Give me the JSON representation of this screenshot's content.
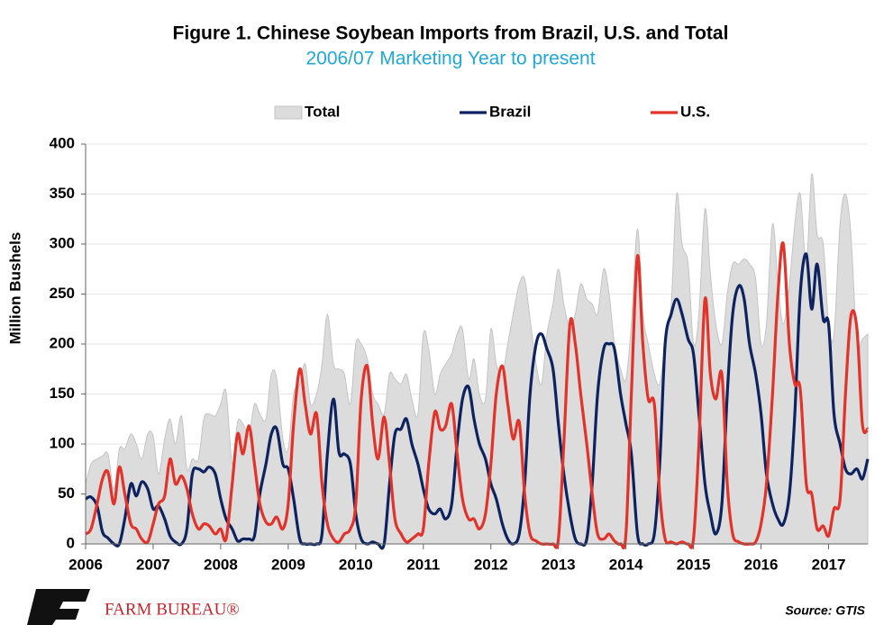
{
  "chart_data": {
    "type": "line",
    "title": "Figure 1. Chinese Soybean Imports from Brazil, U.S. and Total",
    "subtitle": "2006/07 Marketing Year to present",
    "y_label": "Million Bushels",
    "source": "Source: GTIS",
    "logo_text": "FARM BUREAU®",
    "xlim": [
      2006,
      2017.58
    ],
    "xticks": [
      2006,
      2007,
      2008,
      2009,
      2010,
      2011,
      2012,
      2013,
      2014,
      2015,
      2016,
      2017
    ],
    "ylim": [
      0,
      400
    ],
    "yticks": [
      0,
      50,
      100,
      150,
      200,
      250,
      300,
      350,
      400
    ],
    "grid": true,
    "legend": "top",
    "x": [
      2006,
      2006.08,
      2006.17,
      2006.25,
      2006.33,
      2006.42,
      2006.5,
      2006.58,
      2006.67,
      2006.75,
      2006.83,
      2006.92,
      2007,
      2007.08,
      2007.17,
      2007.25,
      2007.33,
      2007.42,
      2007.5,
      2007.58,
      2007.67,
      2007.75,
      2007.83,
      2007.92,
      2008,
      2008.08,
      2008.17,
      2008.25,
      2008.33,
      2008.42,
      2008.5,
      2008.58,
      2008.67,
      2008.75,
      2008.83,
      2008.92,
      2009,
      2009.08,
      2009.17,
      2009.25,
      2009.33,
      2009.42,
      2009.5,
      2009.58,
      2009.67,
      2009.75,
      2009.83,
      2009.92,
      2010,
      2010.08,
      2010.17,
      2010.25,
      2010.33,
      2010.42,
      2010.5,
      2010.58,
      2010.67,
      2010.75,
      2010.83,
      2010.92,
      2011,
      2011.08,
      2011.17,
      2011.25,
      2011.33,
      2011.42,
      2011.5,
      2011.58,
      2011.67,
      2011.75,
      2011.83,
      2011.92,
      2012,
      2012.08,
      2012.17,
      2012.25,
      2012.33,
      2012.42,
      2012.5,
      2012.58,
      2012.67,
      2012.75,
      2012.83,
      2012.92,
      2013,
      2013.08,
      2013.17,
      2013.25,
      2013.33,
      2013.42,
      2013.5,
      2013.58,
      2013.67,
      2013.75,
      2013.83,
      2013.92,
      2014,
      2014.08,
      2014.17,
      2014.25,
      2014.33,
      2014.42,
      2014.5,
      2014.58,
      2014.67,
      2014.75,
      2014.83,
      2014.92,
      2015,
      2015.08,
      2015.17,
      2015.25,
      2015.33,
      2015.42,
      2015.5,
      2015.58,
      2015.67,
      2015.75,
      2015.83,
      2015.92,
      2016,
      2016.08,
      2016.17,
      2016.25,
      2016.33,
      2016.42,
      2016.5,
      2016.58,
      2016.67,
      2016.75,
      2016.83,
      2016.92,
      2017,
      2017.08,
      2017.17,
      2017.25,
      2017.33,
      2017.42,
      2017.5,
      2017.58
    ],
    "series": [
      {
        "name": "Total",
        "color": "#dcdcdc",
        "style": "area",
        "values": [
          60,
          80,
          85,
          88,
          90,
          55,
          95,
          95,
          110,
          100,
          85,
          110,
          108,
          70,
          105,
          125,
          100,
          128,
          75,
          85,
          85,
          125,
          130,
          128,
          140,
          152,
          80,
          122,
          120,
          110,
          140,
          130,
          125,
          170,
          165,
          105,
          95,
          150,
          160,
          180,
          140,
          150,
          180,
          230,
          180,
          175,
          170,
          140,
          200,
          200,
          185,
          150,
          140,
          130,
          170,
          165,
          160,
          170,
          145,
          130,
          210,
          195,
          150,
          170,
          180,
          190,
          210,
          215,
          165,
          185,
          150,
          145,
          215,
          180,
          170,
          200,
          230,
          260,
          265,
          225,
          180,
          160,
          210,
          240,
          275,
          240,
          215,
          230,
          260,
          245,
          240,
          230,
          275,
          250,
          200,
          175,
          165,
          220,
          315,
          230,
          200,
          170,
          160,
          200,
          240,
          350,
          300,
          280,
          200,
          230,
          335,
          270,
          220,
          200,
          250,
          280,
          280,
          285,
          280,
          265,
          200,
          220,
          320,
          260,
          220,
          260,
          320,
          350,
          280,
          370,
          310,
          300,
          220,
          210,
          320,
          350,
          310,
          200,
          205,
          210
        ]
      },
      {
        "name": "Brazil",
        "color": "#0d2360",
        "style": "line",
        "values": [
          45,
          47,
          38,
          12,
          6,
          0,
          0,
          25,
          60,
          48,
          62,
          55,
          35,
          38,
          25,
          8,
          2,
          0,
          15,
          70,
          75,
          72,
          77,
          70,
          45,
          25,
          15,
          3,
          5,
          5,
          8,
          50,
          80,
          110,
          115,
          80,
          75,
          45,
          5,
          0,
          0,
          0,
          10,
          90,
          145,
          92,
          90,
          80,
          30,
          5,
          0,
          2,
          0,
          0,
          60,
          110,
          115,
          125,
          100,
          80,
          55,
          35,
          30,
          35,
          25,
          40,
          100,
          145,
          157,
          125,
          100,
          85,
          60,
          45,
          20,
          5,
          0,
          10,
          60,
          150,
          200,
          210,
          195,
          175,
          120,
          70,
          30,
          5,
          0,
          5,
          60,
          150,
          195,
          200,
          195,
          150,
          120,
          90,
          10,
          0,
          0,
          10,
          80,
          200,
          230,
          245,
          230,
          205,
          190,
          130,
          60,
          30,
          10,
          40,
          150,
          230,
          258,
          245,
          200,
          170,
          130,
          70,
          40,
          25,
          20,
          50,
          130,
          250,
          290,
          235,
          280,
          225,
          220,
          130,
          100,
          75,
          70,
          75,
          65,
          85
        ]
      },
      {
        "name": "U.S.",
        "color": "#e2332b",
        "style": "line",
        "values": [
          10,
          15,
          40,
          65,
          72,
          40,
          77,
          50,
          20,
          15,
          5,
          2,
          20,
          40,
          48,
          85,
          60,
          68,
          55,
          30,
          15,
          20,
          18,
          10,
          15,
          5,
          60,
          110,
          90,
          118,
          80,
          40,
          22,
          20,
          27,
          15,
          40,
          120,
          175,
          140,
          110,
          130,
          60,
          20,
          5,
          2,
          10,
          15,
          40,
          145,
          178,
          120,
          85,
          127,
          80,
          25,
          10,
          2,
          5,
          10,
          15,
          80,
          132,
          115,
          118,
          140,
          90,
          45,
          25,
          25,
          15,
          30,
          80,
          150,
          178,
          140,
          105,
          122,
          50,
          10,
          3,
          0,
          0,
          0,
          5,
          100,
          220,
          200,
          150,
          100,
          50,
          10,
          5,
          10,
          3,
          0,
          10,
          150,
          288,
          200,
          145,
          140,
          50,
          5,
          2,
          0,
          2,
          0,
          5,
          100,
          245,
          170,
          145,
          170,
          60,
          10,
          2,
          0,
          0,
          2,
          20,
          60,
          150,
          250,
          300,
          200,
          160,
          155,
          60,
          50,
          15,
          18,
          8,
          35,
          45,
          150,
          228,
          215,
          120,
          115
        ]
      }
    ]
  }
}
